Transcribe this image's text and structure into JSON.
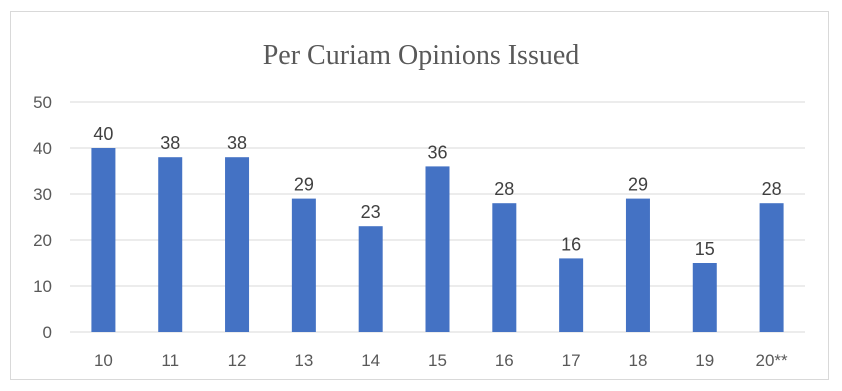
{
  "chart_data": {
    "type": "bar",
    "title": "Per Curiam Opinions Issued",
    "categories": [
      "10",
      "11",
      "12",
      "13",
      "14",
      "15",
      "16",
      "17",
      "18",
      "19",
      "20**"
    ],
    "values": [
      40,
      38,
      38,
      29,
      23,
      36,
      28,
      16,
      29,
      15,
      28
    ],
    "ylim": [
      0,
      50
    ],
    "yticks": [
      0,
      10,
      20,
      30,
      40,
      50
    ],
    "grid": true,
    "legend": "none",
    "bar_color": "#4472c4",
    "grid_color": "#d9d9d9",
    "xlabel": "",
    "ylabel": ""
  }
}
